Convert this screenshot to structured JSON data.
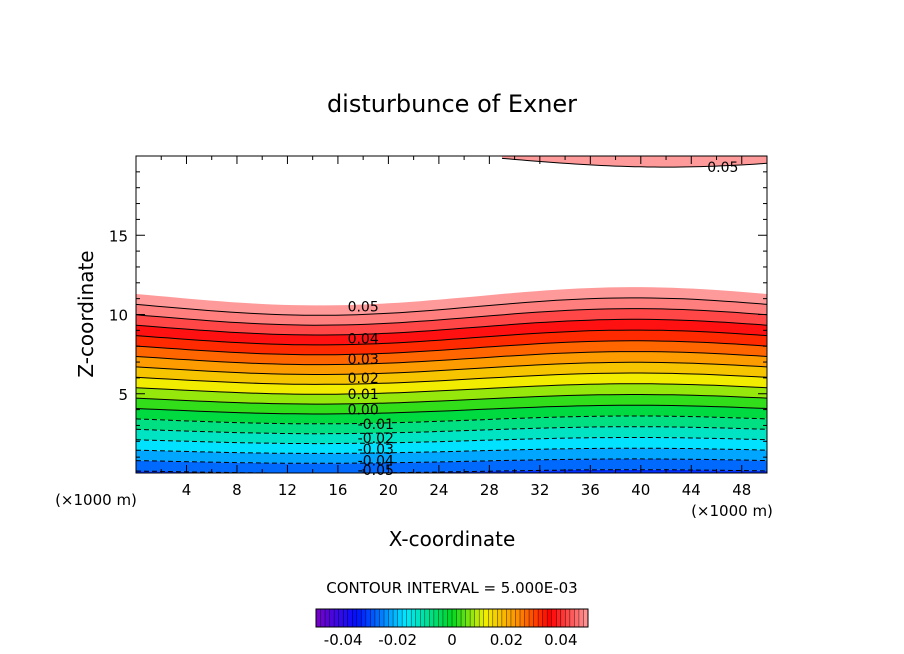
{
  "chart_data": {
    "type": "contour",
    "title": "disturbunce of Exner",
    "xlabel": "X-coordinate",
    "ylabel": "Z-coordinate",
    "x_unit": "(×1000 m)",
    "x_unit_right": "(×1000 m)",
    "xlim": [
      0,
      50
    ],
    "ylim": [
      0,
      20
    ],
    "x_ticks": [
      4,
      8,
      12,
      16,
      20,
      24,
      28,
      32,
      36,
      40,
      44,
      48
    ],
    "y_ticks": [
      5,
      10,
      15
    ],
    "contour_interval_text": "CONTOUR INTERVAL = 5.000E-03",
    "contour_interval": 0.005,
    "contour_labels": [
      {
        "text": "0.05",
        "x": 18,
        "z": 10.5
      },
      {
        "text": "0.04",
        "x": 18,
        "z": 8.5
      },
      {
        "text": "0.03",
        "x": 18,
        "z": 7.2
      },
      {
        "text": "0.02",
        "x": 18,
        "z": 6.0
      },
      {
        "text": "0.01",
        "x": 18,
        "z": 5.0
      },
      {
        "text": "0.00",
        "x": 18,
        "z": 4.0
      },
      {
        "text": "-0.01",
        "x": 19,
        "z": 3.1
      },
      {
        "text": "-0.02",
        "x": 19,
        "z": 2.2
      },
      {
        "text": "-0.03",
        "x": 19,
        "z": 1.5
      },
      {
        "text": "-0.04",
        "x": 19,
        "z": 0.8
      },
      {
        "text": "-0.05",
        "x": 19,
        "z": 0.2
      },
      {
        "text": "0.05",
        "x": 46.5,
        "z": 19.3
      }
    ],
    "colorbar": {
      "vmin": -0.05,
      "vmax": 0.05,
      "ticks": [
        -0.04,
        -0.02,
        0,
        0.02,
        0.04
      ],
      "tick_labels": [
        "-0.04",
        "-0.02",
        "0",
        "0.02",
        "0.04"
      ]
    },
    "colors": {
      "violet": "#7a00c8",
      "blue": "#0010ff",
      "cyan": "#00e8ff",
      "green": "#00d820",
      "yellow": "#f0f000",
      "orange": "#ff9000",
      "red": "#ff0000",
      "pink": "#ff9a9a"
    }
  }
}
